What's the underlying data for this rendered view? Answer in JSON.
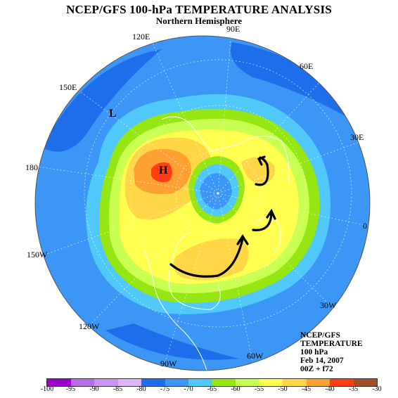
{
  "title": "NCEP/GFS 100-hPa TEMPERATURE ANALYSIS",
  "subtitle": "Northern Hemisphere",
  "map": {
    "projection": "polar stereographic",
    "longitude_labels": [
      "90E",
      "120E",
      "60E",
      "150E",
      "30E",
      "180",
      "0",
      "150W",
      "30W",
      "120W",
      "60W",
      "90W"
    ],
    "pressure_markers": [
      {
        "id": "low",
        "label": "L"
      },
      {
        "id": "high",
        "label": "H"
      }
    ],
    "annotation": "hand-drawn black arrows indicating circulation"
  },
  "info": {
    "line1": "NCEP/GFS",
    "line2": "TEMPERATURE",
    "line3": "100 hPa",
    "line4": "Feb 14, 2007",
    "line5": "00Z + f72"
  },
  "colorbar": {
    "labels": [
      "-100",
      "-95",
      "-90",
      "-85",
      "-80",
      "-75",
      "-70",
      "-65",
      "-60",
      "-55",
      "-50",
      "-45",
      "-40",
      "-35",
      "-30"
    ],
    "colors": [
      "#9a00c8",
      "#b46ee6",
      "#c896f0",
      "#dcb4f8",
      "#1e6eeb",
      "#3c96f5",
      "#50c8fa",
      "#96e614",
      "#c8ff50",
      "#ffff50",
      "#ffd746",
      "#ffa032",
      "#ff3c14",
      "#a05028",
      "#828282"
    ]
  }
}
